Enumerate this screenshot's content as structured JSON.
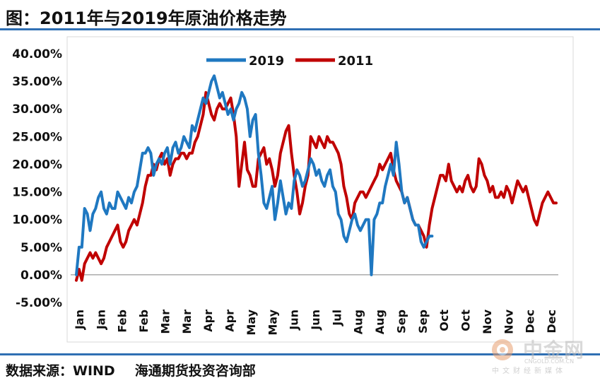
{
  "header": {
    "title": "图：2011年与2019年原油价格走势"
  },
  "footer": {
    "source_label": "数据来源：WIND",
    "org": "海通期货投资咨询部"
  },
  "watermark": {
    "name": "中金网",
    "url": "CNGOLD.COM.CN",
    "tagline": "中文财经新媒体"
  },
  "colors": {
    "series_2019": "#1f78c1",
    "series_2011": "#c00000",
    "rule": "#2f6fb3"
  },
  "chart_data": {
    "type": "line",
    "title": "",
    "xlabel": "",
    "ylabel": "",
    "ylim": [
      -5,
      40
    ],
    "yticks": [
      "-5.00%",
      "0.00%",
      "5.00%",
      "10.00%",
      "15.00%",
      "20.00%",
      "25.00%",
      "30.00%",
      "35.00%",
      "40.00%"
    ],
    "ytick_values": [
      -5,
      0,
      5,
      10,
      15,
      20,
      25,
      30,
      35,
      40
    ],
    "xticks": [
      "Jan",
      "Jan",
      "Feb",
      "Feb",
      "Mar",
      "Mar",
      "Apr",
      "Apr",
      "May",
      "May",
      "Jun",
      "Jun",
      "Jul",
      "Aug",
      "Aug",
      "Sep",
      "Sep",
      "Oct",
      "Oct",
      "Nov",
      "Nov",
      "Dec",
      "Dec"
    ],
    "legend": "top-center",
    "grid": false,
    "series": [
      {
        "name": "2019",
        "values": [
          0,
          5,
          5,
          12,
          11,
          8,
          11,
          12,
          14,
          15,
          12,
          11,
          13,
          12,
          12,
          15,
          14,
          13,
          12,
          14,
          13,
          15,
          16,
          19,
          22,
          22,
          23,
          22,
          18,
          20,
          21,
          20,
          22,
          23,
          20,
          23,
          24,
          22,
          23,
          25,
          24,
          23,
          27,
          26,
          28,
          30,
          32,
          31,
          33,
          35,
          36,
          34,
          32,
          33,
          31,
          29,
          30,
          28,
          30,
          31,
          33,
          32,
          30,
          25,
          28,
          29,
          22,
          18,
          13,
          12,
          14,
          16,
          10,
          13,
          17,
          14,
          11,
          13,
          12,
          17,
          19,
          18,
          16,
          17,
          19,
          21,
          20,
          18,
          19,
          17,
          16,
          18,
          19,
          16,
          15,
          11,
          10,
          7,
          6,
          8,
          10,
          11,
          9,
          8,
          9,
          10,
          10,
          0,
          10,
          11,
          13,
          13,
          16,
          18,
          20,
          18,
          24,
          20,
          15,
          13,
          14,
          12,
          10,
          9,
          9,
          6,
          5,
          6,
          7,
          7
        ],
        "color": "#1f78c1"
      },
      {
        "name": "2011",
        "values": [
          -1,
          1,
          -1,
          2,
          3,
          4,
          3,
          4,
          3,
          2,
          3,
          5,
          6,
          7,
          8,
          9,
          6,
          5,
          6,
          8,
          9,
          10,
          9,
          11,
          13,
          16,
          18,
          18,
          20,
          19,
          21,
          22,
          20,
          21,
          18,
          20,
          21,
          21,
          22,
          22,
          21,
          22,
          22,
          24,
          25,
          27,
          29,
          33,
          31,
          29,
          28,
          30,
          31,
          30,
          30,
          31,
          32,
          29,
          25,
          16,
          20,
          24,
          19,
          18,
          16,
          16,
          21,
          22,
          23,
          20,
          21,
          19,
          16,
          18,
          22,
          24,
          26,
          27,
          22,
          18,
          15,
          11,
          13,
          16,
          18,
          25,
          24,
          23,
          25,
          24,
          23,
          25,
          24,
          24,
          23,
          22,
          20,
          16,
          14,
          11,
          10,
          13,
          14,
          15,
          15,
          14,
          15,
          16,
          17,
          18,
          20,
          19,
          20,
          21,
          22,
          19,
          17,
          16,
          15,
          13,
          14,
          12,
          10,
          9,
          9,
          8,
          7,
          5,
          9,
          12,
          14,
          16,
          18,
          18,
          17,
          20,
          17,
          16,
          15,
          16,
          15,
          17,
          18,
          16,
          15,
          16,
          21,
          20,
          18,
          17,
          15,
          16,
          14,
          14,
          15,
          14,
          16,
          15,
          13,
          15,
          17,
          16,
          15,
          16,
          14,
          12,
          10,
          9,
          11,
          13,
          14,
          15,
          14,
          13,
          13
        ]
      }
    ]
  }
}
